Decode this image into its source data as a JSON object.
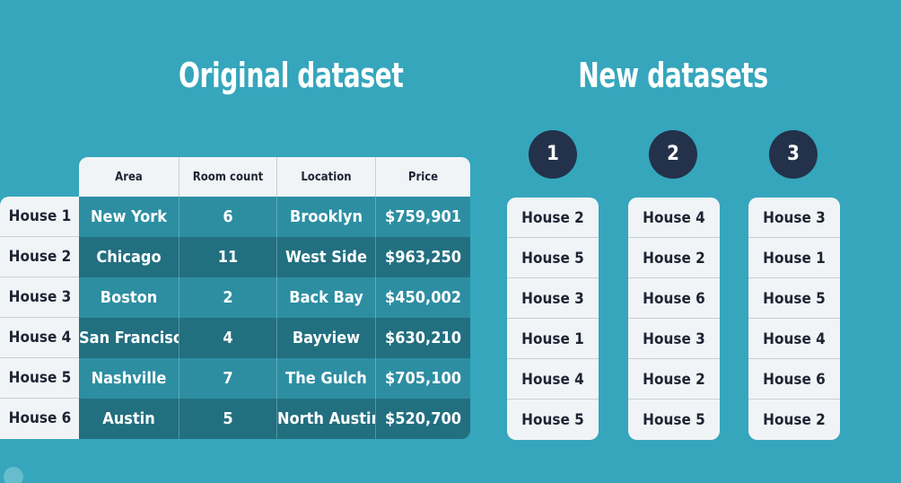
{
  "original": {
    "title": "Original dataset",
    "headers": [
      "Area",
      "Room count",
      "Location",
      "Price"
    ],
    "rows": [
      {
        "label": "House 1",
        "area": "New York",
        "rooms": "6",
        "location": "Brooklyn",
        "price": "$759,901"
      },
      {
        "label": "House 2",
        "area": "Chicago",
        "rooms": "11",
        "location": "West Side",
        "price": "$963,250"
      },
      {
        "label": "House 3",
        "area": "Boston",
        "rooms": "2",
        "location": "Back Bay",
        "price": "$450,002"
      },
      {
        "label": "House 4",
        "area": "San Francisco",
        "rooms": "4",
        "location": "Bayview",
        "price": "$630,210"
      },
      {
        "label": "House 5",
        "area": "Nashville",
        "rooms": "7",
        "location": "The Gulch",
        "price": "$705,100"
      },
      {
        "label": "House 6",
        "area": "Austin",
        "rooms": "5",
        "location": "North Austin",
        "price": "$520,700"
      }
    ]
  },
  "new_datasets": {
    "title": "New datasets",
    "sets": [
      {
        "number": "1",
        "items": [
          "House 2",
          "House 5",
          "House 3",
          "House 1",
          "House 4",
          "House 5"
        ]
      },
      {
        "number": "2",
        "items": [
          "House 4",
          "House 2",
          "House 6",
          "House 3",
          "House 2",
          "House 5"
        ]
      },
      {
        "number": "3",
        "items": [
          "House 3",
          "House 1",
          "House 5",
          "House 4",
          "House 6",
          "House 2"
        ]
      }
    ]
  },
  "colors": {
    "background": "#35a6bc",
    "row_light": "#2d8ea2",
    "row_dark": "#226f80",
    "circle": "#24314a",
    "card": "#f1f4f6"
  }
}
